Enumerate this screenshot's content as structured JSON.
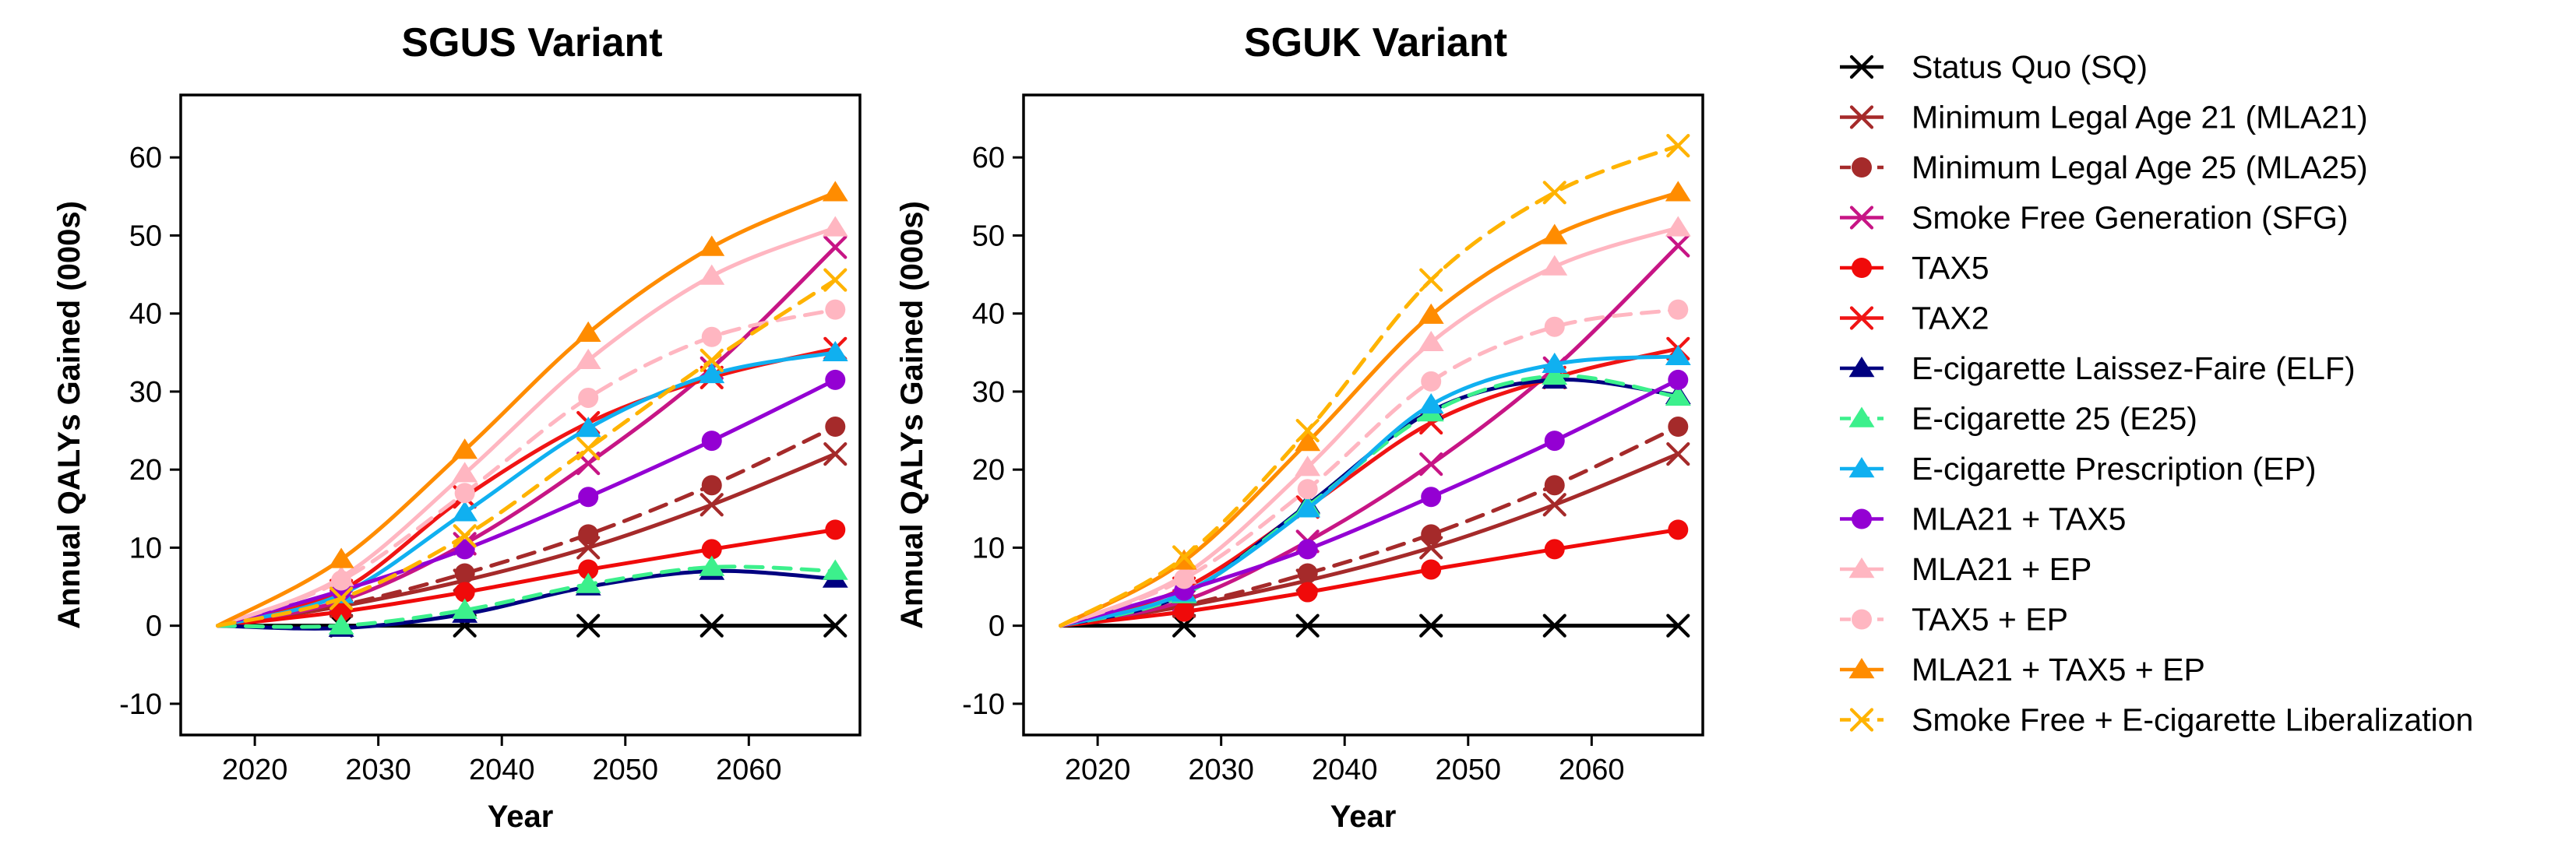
{
  "chart_data": {
    "type": "line",
    "x": [
      2017,
      2027,
      2037,
      2047,
      2057,
      2067
    ],
    "xlim": [
      2014,
      2069
    ],
    "ylim": [
      -14,
      68
    ],
    "xticks": [
      2020,
      2030,
      2040,
      2050,
      2060
    ],
    "yticks": [
      -10,
      0,
      10,
      20,
      30,
      40,
      50,
      60
    ],
    "xlabel": "Year",
    "ylabel": "Annual QALYs Gained (000s)",
    "legend_position": "right",
    "grid": false,
    "legend": [
      {
        "name": "Status Quo (SQ)",
        "color": "#000000",
        "dash": false,
        "marker": "x"
      },
      {
        "name": "Minimum Legal Age 21 (MLA21)",
        "color": "#a52a2a",
        "dash": false,
        "marker": "x"
      },
      {
        "name": "Minimum Legal Age 25 (MLA25)",
        "color": "#a52a2a",
        "dash": true,
        "marker": "circle"
      },
      {
        "name": "Smoke Free Generation (SFG)",
        "color": "#c71585",
        "dash": false,
        "marker": "x"
      },
      {
        "name": "TAX5",
        "color": "#f00a0a",
        "dash": false,
        "marker": "circle"
      },
      {
        "name": "TAX2",
        "color": "#f01414",
        "dash": false,
        "marker": "x"
      },
      {
        "name": "E-cigarette Laissez-Faire (ELF)",
        "color": "#000080",
        "dash": false,
        "marker": "triangle"
      },
      {
        "name": "E-cigarette 25 (E25)",
        "color": "#3cf08c",
        "dash": true,
        "marker": "triangle"
      },
      {
        "name": "E-cigarette Prescription (EP)",
        "color": "#10b0f0",
        "dash": false,
        "marker": "triangle"
      },
      {
        "name": "MLA21 + TAX5",
        "color": "#9400d3",
        "dash": false,
        "marker": "circle"
      },
      {
        "name": "MLA21 + EP",
        "color": "#ffb6c1",
        "dash": false,
        "marker": "triangle"
      },
      {
        "name": "TAX5 + EP",
        "color": "#ffb6c1",
        "dash": true,
        "marker": "circle"
      },
      {
        "name": "MLA21 + TAX5 + EP",
        "color": "#ff8c00",
        "dash": false,
        "marker": "triangle"
      },
      {
        "name": "Smoke Free + E-cigarette Liberalization",
        "color": "#ffb300",
        "dash": true,
        "marker": "x"
      }
    ],
    "panels": [
      {
        "title": "SGUS Variant",
        "series": [
          {
            "name": "Status Quo (SQ)",
            "values": [
              0,
              0,
              0,
              0,
              0,
              0
            ]
          },
          {
            "name": "Minimum Legal Age 21 (MLA21)",
            "values": [
              0,
              2.5,
              5.8,
              10,
              15.5,
              22
            ]
          },
          {
            "name": "Minimum Legal Age 25 (MLA25)",
            "values": [
              0,
              2.6,
              6.7,
              11.7,
              18,
              25.5
            ]
          },
          {
            "name": "Smoke Free Generation (SFG)",
            "values": [
              0,
              3.2,
              10.5,
              20.8,
              33,
              48.5
            ]
          },
          {
            "name": "TAX5",
            "values": [
              0,
              1.8,
              4.3,
              7.2,
              9.8,
              12.3
            ]
          },
          {
            "name": "TAX2",
            "values": [
              0,
              4.5,
              16.5,
              26,
              31.8,
              35.5
            ]
          },
          {
            "name": "E-cigarette Laissez-Faire (ELF)",
            "values": [
              0,
              -0.3,
              1.5,
              5,
              7,
              6
            ]
          },
          {
            "name": "E-cigarette 25 (E25)",
            "values": [
              0,
              0,
              2,
              5.3,
              7.5,
              7
            ]
          },
          {
            "name": "E-cigarette Prescription (EP)",
            "values": [
              0,
              4,
              14.5,
              25.3,
              32.2,
              35
            ]
          },
          {
            "name": "MLA21 + TAX5",
            "values": [
              0,
              4.5,
              9.8,
              16.5,
              23.7,
              31.5
            ]
          },
          {
            "name": "MLA21 + EP",
            "values": [
              0,
              6.2,
              19.5,
              34,
              44.8,
              51
            ]
          },
          {
            "name": "TAX5 + EP",
            "values": [
              0,
              5.8,
              17,
              29.2,
              37,
              40.5
            ]
          },
          {
            "name": "MLA21 + TAX5 + EP",
            "values": [
              0,
              8.5,
              22.5,
              37.5,
              48.5,
              55.5
            ]
          },
          {
            "name": "Smoke Free + E-cigarette Liberalization",
            "values": [
              0,
              3.5,
              11.5,
              22.7,
              34,
              44.3
            ]
          }
        ]
      },
      {
        "title": "SGUK Variant",
        "series": [
          {
            "name": "Status Quo (SQ)",
            "values": [
              0,
              0,
              0,
              0,
              0,
              0
            ]
          },
          {
            "name": "Minimum Legal Age 21 (MLA21)",
            "values": [
              0,
              2.5,
              5.8,
              10,
              15.5,
              22
            ]
          },
          {
            "name": "Minimum Legal Age 25 (MLA25)",
            "values": [
              0,
              2.6,
              6.7,
              11.7,
              18,
              25.5
            ]
          },
          {
            "name": "Smoke Free Generation (SFG)",
            "values": [
              0,
              3.2,
              10.8,
              20.7,
              33,
              48.7
            ]
          },
          {
            "name": "TAX5",
            "values": [
              0,
              1.8,
              4.3,
              7.2,
              9.8,
              12.3
            ]
          },
          {
            "name": "TAX2",
            "values": [
              0,
              4.8,
              15.2,
              26,
              31.8,
              35.5
            ]
          },
          {
            "name": "E-cigarette Laissez-Faire (ELF)",
            "values": [
              0,
              4,
              15.5,
              27.5,
              31.5,
              29.5
            ]
          },
          {
            "name": "E-cigarette 25 (E25)",
            "values": [
              0,
              4,
              15.3,
              27.3,
              32,
              29.3
            ]
          },
          {
            "name": "E-cigarette Prescription (EP)",
            "values": [
              0,
              4.2,
              15,
              28.3,
              33.5,
              34.5
            ]
          },
          {
            "name": "MLA21 + TAX5",
            "values": [
              0,
              4.5,
              9.8,
              16.5,
              23.7,
              31.5
            ]
          },
          {
            "name": "MLA21 + EP",
            "values": [
              0,
              6.5,
              20.3,
              36.3,
              46,
              51
            ]
          },
          {
            "name": "TAX5 + EP",
            "values": [
              0,
              6,
              17.5,
              31.3,
              38.3,
              40.5
            ]
          },
          {
            "name": "MLA21 + TAX5 + EP",
            "values": [
              0,
              8.3,
              23.5,
              39.8,
              50,
              55.5
            ]
          },
          {
            "name": "Smoke Free + E-cigarette Liberalization",
            "values": [
              0,
              8.8,
              25,
              44.3,
              55.5,
              61.5
            ]
          }
        ]
      }
    ]
  }
}
